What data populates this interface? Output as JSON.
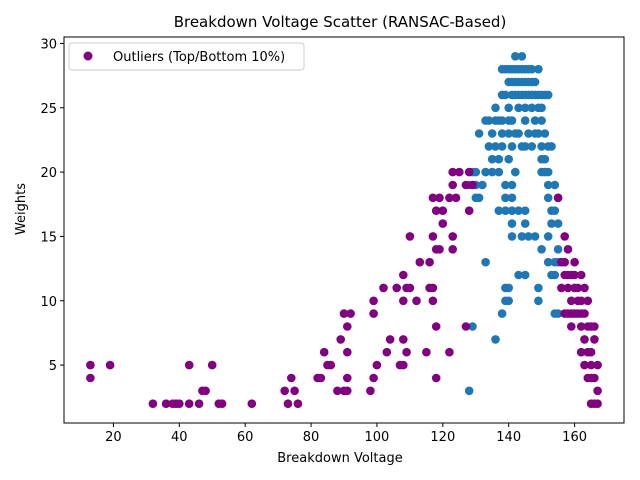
{
  "chart_data": {
    "type": "scatter",
    "title": "Breakdown Voltage Scatter (RANSAC-Based)",
    "xlabel": "Breakdown Voltage",
    "ylabel": "Weights",
    "xlim": [
      5,
      175
    ],
    "ylim": [
      0.5,
      30.5
    ],
    "xticks": [
      20,
      40,
      60,
      80,
      100,
      120,
      140,
      160
    ],
    "yticks": [
      5,
      10,
      15,
      20,
      25,
      30
    ],
    "grid": false,
    "legend_position": "top-left",
    "series": [
      {
        "name": "",
        "color": "#1f77b4",
        "points": [
          [
            128,
            3
          ],
          [
            129,
            8
          ],
          [
            136,
            7
          ],
          [
            138,
            9
          ],
          [
            143,
            12
          ],
          [
            145,
            12
          ],
          [
            154,
            9
          ],
          [
            155,
            9
          ],
          [
            133,
            13
          ],
          [
            139,
            10
          ],
          [
            140,
            10
          ],
          [
            149,
            10
          ],
          [
            149,
            11
          ],
          [
            139,
            11
          ],
          [
            140,
            11
          ],
          [
            146,
            15
          ],
          [
            148,
            15
          ],
          [
            144,
            15
          ],
          [
            145,
            16
          ],
          [
            141,
            15
          ],
          [
            141,
            16
          ],
          [
            150,
            14
          ],
          [
            155,
            14
          ],
          [
            152,
            13
          ],
          [
            154,
            13
          ],
          [
            155,
            13
          ],
          [
            153,
            12
          ],
          [
            154,
            12
          ],
          [
            152,
            15
          ],
          [
            153,
            16
          ],
          [
            155,
            16
          ],
          [
            137,
            17
          ],
          [
            139,
            17
          ],
          [
            141,
            17
          ],
          [
            143,
            17
          ],
          [
            145,
            17
          ],
          [
            153,
            17
          ],
          [
            154,
            17
          ],
          [
            139,
            18
          ],
          [
            141,
            18
          ],
          [
            152,
            18
          ],
          [
            155,
            18
          ],
          [
            130,
            18
          ],
          [
            131,
            18
          ],
          [
            139,
            19
          ],
          [
            141,
            19
          ],
          [
            128,
            19
          ],
          [
            130,
            19
          ],
          [
            132,
            19
          ],
          [
            152,
            19
          ],
          [
            154,
            19
          ],
          [
            129,
            20
          ],
          [
            130,
            20
          ],
          [
            133,
            20
          ],
          [
            135,
            20
          ],
          [
            137,
            20
          ],
          [
            142,
            20
          ],
          [
            150,
            20
          ],
          [
            151,
            20
          ],
          [
            152,
            20
          ],
          [
            135,
            21
          ],
          [
            137,
            21
          ],
          [
            140,
            21
          ],
          [
            150,
            21
          ],
          [
            151,
            21
          ],
          [
            134,
            22
          ],
          [
            136,
            22
          ],
          [
            138,
            22
          ],
          [
            141,
            22
          ],
          [
            144,
            22
          ],
          [
            145,
            22
          ],
          [
            147,
            22
          ],
          [
            150,
            22
          ],
          [
            152,
            22
          ],
          [
            153,
            22
          ],
          [
            131,
            23
          ],
          [
            135,
            23
          ],
          [
            138,
            23
          ],
          [
            140,
            23
          ],
          [
            142,
            23
          ],
          [
            143,
            23
          ],
          [
            146,
            23
          ],
          [
            148,
            23
          ],
          [
            149,
            23
          ],
          [
            151,
            23
          ],
          [
            133,
            24
          ],
          [
            134,
            24
          ],
          [
            136,
            24
          ],
          [
            137,
            24
          ],
          [
            138,
            24
          ],
          [
            140,
            24
          ],
          [
            141,
            24
          ],
          [
            145,
            24
          ],
          [
            148,
            24
          ],
          [
            150,
            24
          ],
          [
            136,
            25
          ],
          [
            140,
            25
          ],
          [
            143,
            25
          ],
          [
            145,
            25
          ],
          [
            147,
            25
          ],
          [
            149,
            25
          ],
          [
            150,
            25
          ],
          [
            138,
            26
          ],
          [
            139,
            26
          ],
          [
            141,
            26
          ],
          [
            142,
            26
          ],
          [
            143,
            26
          ],
          [
            144,
            26
          ],
          [
            145,
            26
          ],
          [
            146,
            26
          ],
          [
            147,
            26
          ],
          [
            148,
            26
          ],
          [
            149,
            26
          ],
          [
            150,
            26
          ],
          [
            151,
            26
          ],
          [
            152,
            26
          ],
          [
            140,
            27
          ],
          [
            141,
            27
          ],
          [
            142,
            27
          ],
          [
            143,
            27
          ],
          [
            144,
            27
          ],
          [
            145,
            27
          ],
          [
            146,
            27
          ],
          [
            147,
            27
          ],
          [
            148,
            27
          ],
          [
            138,
            28
          ],
          [
            139,
            28
          ],
          [
            140,
            28
          ],
          [
            141,
            28
          ],
          [
            142,
            28
          ],
          [
            143,
            28
          ],
          [
            144,
            28
          ],
          [
            145,
            28
          ],
          [
            146,
            28
          ],
          [
            147,
            28
          ],
          [
            149,
            28
          ],
          [
            142,
            29
          ],
          [
            144,
            29
          ]
        ]
      },
      {
        "name": "Outliers (Top/Bottom 10%)",
        "color": "#800080",
        "points": [
          [
            13,
            4
          ],
          [
            13,
            5
          ],
          [
            19,
            5
          ],
          [
            32,
            2
          ],
          [
            36,
            2
          ],
          [
            38,
            2
          ],
          [
            39,
            2
          ],
          [
            40,
            2
          ],
          [
            43,
            2
          ],
          [
            43,
            5
          ],
          [
            46,
            2
          ],
          [
            47,
            3
          ],
          [
            48,
            3
          ],
          [
            50,
            5
          ],
          [
            52,
            2
          ],
          [
            53,
            2
          ],
          [
            62,
            2
          ],
          [
            72,
            3
          ],
          [
            73,
            2
          ],
          [
            74,
            4
          ],
          [
            75,
            3
          ],
          [
            76,
            2
          ],
          [
            82,
            4
          ],
          [
            83,
            4
          ],
          [
            84,
            6
          ],
          [
            85,
            5
          ],
          [
            86,
            5
          ],
          [
            88,
            3
          ],
          [
            89,
            7
          ],
          [
            90,
            3
          ],
          [
            90,
            9
          ],
          [
            91,
            4
          ],
          [
            91,
            6
          ],
          [
            91,
            3
          ],
          [
            91,
            8
          ],
          [
            92,
            9
          ],
          [
            98,
            3
          ],
          [
            99,
            4
          ],
          [
            99,
            9
          ],
          [
            99,
            10
          ],
          [
            100,
            5
          ],
          [
            102,
            11
          ],
          [
            103,
            6
          ],
          [
            104,
            7
          ],
          [
            106,
            11
          ],
          [
            107,
            5
          ],
          [
            108,
            5
          ],
          [
            109,
            6
          ],
          [
            108,
            7
          ],
          [
            108,
            10
          ],
          [
            108,
            12
          ],
          [
            109,
            11
          ],
          [
            110,
            15
          ],
          [
            110,
            11
          ],
          [
            112,
            10
          ],
          [
            113,
            13
          ],
          [
            115,
            6
          ],
          [
            116,
            11
          ],
          [
            116,
            13
          ],
          [
            117,
            10
          ],
          [
            117,
            11
          ],
          [
            117,
            18
          ],
          [
            117,
            15
          ],
          [
            118,
            14
          ],
          [
            118,
            17
          ],
          [
            118,
            8
          ],
          [
            118,
            4
          ],
          [
            119,
            18
          ],
          [
            120,
            16
          ],
          [
            120,
            17
          ],
          [
            119,
            14
          ],
          [
            122,
            18
          ],
          [
            122,
            6
          ],
          [
            123,
            14
          ],
          [
            123,
            15
          ],
          [
            123,
            19
          ],
          [
            123,
            20
          ],
          [
            124,
            18
          ],
          [
            125,
            20
          ],
          [
            127,
            19
          ],
          [
            127,
            8
          ],
          [
            128,
            17
          ],
          [
            129,
            19
          ],
          [
            128,
            20
          ],
          [
            155,
            18
          ],
          [
            156,
            11
          ],
          [
            157,
            9
          ],
          [
            157,
            13
          ],
          [
            157,
            15
          ],
          [
            158,
            12
          ],
          [
            158,
            11
          ],
          [
            158,
            14
          ],
          [
            159,
            10
          ],
          [
            159,
            9
          ],
          [
            159,
            8
          ],
          [
            160,
            11
          ],
          [
            160,
            13
          ],
          [
            160,
            12
          ],
          [
            161,
            10
          ],
          [
            161,
            9
          ],
          [
            162,
            12
          ],
          [
            162,
            10
          ],
          [
            162,
            8
          ],
          [
            162,
            6
          ],
          [
            163,
            9
          ],
          [
            163,
            7
          ],
          [
            163,
            5
          ],
          [
            164,
            8
          ],
          [
            164,
            6
          ],
          [
            164,
            4
          ],
          [
            165,
            8
          ],
          [
            165,
            6
          ],
          [
            165,
            5
          ],
          [
            166,
            7
          ],
          [
            166,
            4
          ],
          [
            166,
            2
          ],
          [
            167,
            5
          ],
          [
            167,
            3
          ],
          [
            167,
            2
          ],
          [
            166,
            8
          ],
          [
            165,
            4
          ],
          [
            164,
            10
          ],
          [
            163,
            11
          ],
          [
            161,
            11
          ],
          [
            160,
            9
          ],
          [
            159,
            12
          ],
          [
            157,
            12
          ],
          [
            156,
            13
          ],
          [
            162,
            9
          ],
          [
            158,
            9
          ],
          [
            165,
            2
          ]
        ]
      }
    ]
  }
}
